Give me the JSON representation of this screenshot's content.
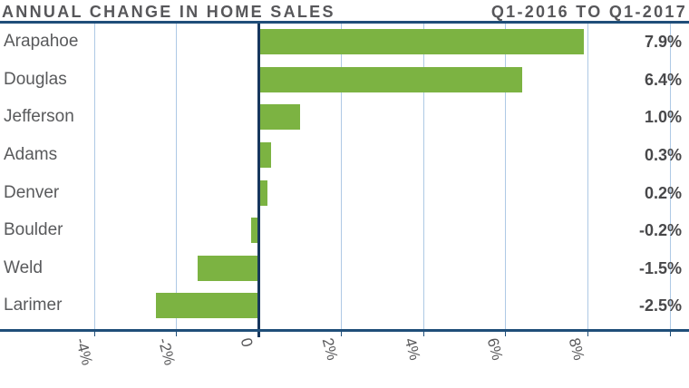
{
  "header": {
    "title_left": "ANNUAL CHANGE IN HOME SALES",
    "title_right": "Q1-2016 TO Q1-2017"
  },
  "chart_data": {
    "type": "bar",
    "orientation": "horizontal",
    "title": "ANNUAL CHANGE IN HOME SALES",
    "subtitle": "Q1-2016 TO Q1-2017",
    "categories": [
      "Arapahoe",
      "Douglas",
      "Jefferson",
      "Adams",
      "Denver",
      "Boulder",
      "Weld",
      "Larimer"
    ],
    "values": [
      7.9,
      6.4,
      1.0,
      0.3,
      0.2,
      -0.2,
      -1.5,
      -2.5
    ],
    "value_labels": [
      "7.9%",
      "6.4%",
      "1.0%",
      "0.3%",
      "0.2%",
      "-0.2%",
      "-1.5%",
      "-2.5%"
    ],
    "xlabel": "",
    "ylabel": "",
    "xlim": [
      -6.3,
      10.46
    ],
    "xticks": [
      {
        "value": -4,
        "label": "-4%"
      },
      {
        "value": -2,
        "label": "-2%"
      },
      {
        "value": 0,
        "label": "0"
      },
      {
        "value": 2,
        "label": "2%"
      },
      {
        "value": 4,
        "label": "4%"
      },
      {
        "value": 6,
        "label": "6%"
      },
      {
        "value": 8,
        "label": "8%"
      },
      {
        "value": 10,
        "label": ""
      }
    ],
    "grid": true,
    "legend": false,
    "colors": {
      "bar": "#7cb342",
      "gridline": "#aec9e5",
      "axis": "#1f4e79",
      "zero_line": "#17375d",
      "title_text": "#57575a",
      "category_text": "#595a5c",
      "value_text": "#48484a",
      "tick_text": "#59595b"
    }
  }
}
